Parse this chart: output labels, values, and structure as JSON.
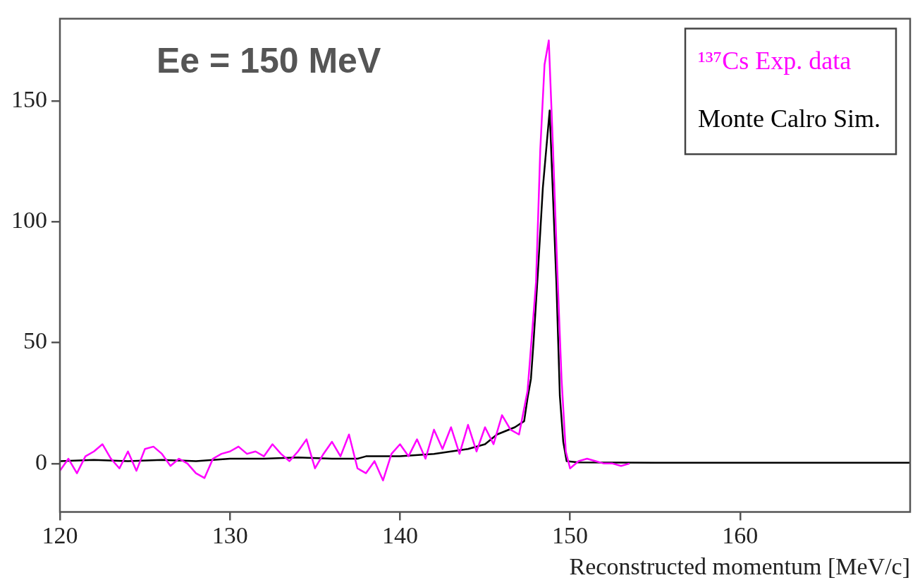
{
  "chart_data": {
    "type": "line",
    "xlabel": "Reconstructed momentum [MeV/c]",
    "annotations": [
      "Ee = 150 MeV"
    ],
    "xlim": [
      120,
      170
    ],
    "ylim": [
      -20,
      184
    ],
    "xticks": [
      120,
      130,
      140,
      150,
      160
    ],
    "yticks": [
      0,
      50,
      100,
      150
    ],
    "grid": false,
    "legend": "top right",
    "marker": "none",
    "series": [
      {
        "name": "¹³⁷Cs Exp. data",
        "color": "#ff00ff",
        "x": [
          120,
          120.5,
          121,
          121.5,
          122,
          122.5,
          123,
          123.5,
          124,
          124.5,
          125,
          125.5,
          126,
          126.5,
          127,
          127.5,
          128,
          128.5,
          129,
          129.5,
          130,
          130.5,
          131,
          131.5,
          132,
          132.5,
          133,
          133.5,
          134,
          134.5,
          135,
          135.5,
          136,
          136.5,
          137,
          137.5,
          138,
          138.5,
          139,
          139.5,
          140,
          140.5,
          141,
          141.5,
          142,
          142.5,
          143,
          143.5,
          144,
          144.5,
          145,
          145.5,
          146,
          146.5,
          147,
          147.5,
          148,
          148.25,
          148.5,
          148.75,
          149,
          149.25,
          149.5,
          149.75,
          150,
          150.5,
          151,
          151.5,
          152,
          152.5,
          153,
          153.5
        ],
        "values": [
          -3,
          2,
          -4,
          3,
          5,
          8,
          2,
          -2,
          5,
          -3,
          6,
          7,
          4,
          -1,
          2,
          0,
          -4,
          -6,
          2,
          4,
          5,
          7,
          4,
          5,
          3,
          8,
          4,
          1,
          5,
          10,
          -2,
          4,
          9,
          3,
          12,
          -2,
          -4,
          1,
          -7,
          4,
          8,
          3,
          10,
          2,
          14,
          6,
          15,
          4,
          16,
          5,
          15,
          8,
          20,
          14,
          12,
          30,
          75,
          130,
          165,
          175,
          130,
          80,
          35,
          5,
          -2,
          1,
          2,
          1,
          0,
          0,
          -1,
          0
        ]
      },
      {
        "name": "Monte Calro Sim.",
        "color": "#000000",
        "x": [
          120,
          122,
          124,
          126,
          128,
          130,
          132,
          134,
          136,
          137.5,
          138,
          140,
          142,
          144,
          145,
          145.7,
          146.75,
          147.3,
          147.5,
          147.7,
          147.85,
          148.1,
          148.4,
          148.8,
          149.2,
          149.4,
          149.6,
          149.8,
          150.5,
          155,
          170
        ],
        "values": [
          1,
          1.5,
          1,
          1.5,
          1,
          2,
          2,
          2.5,
          2,
          2,
          3,
          3,
          4,
          6,
          8,
          12,
          15,
          17.5,
          27,
          35,
          50,
          78,
          114,
          146,
          74,
          28,
          9,
          1,
          0.5,
          0.3,
          0.3
        ]
      }
    ]
  }
}
